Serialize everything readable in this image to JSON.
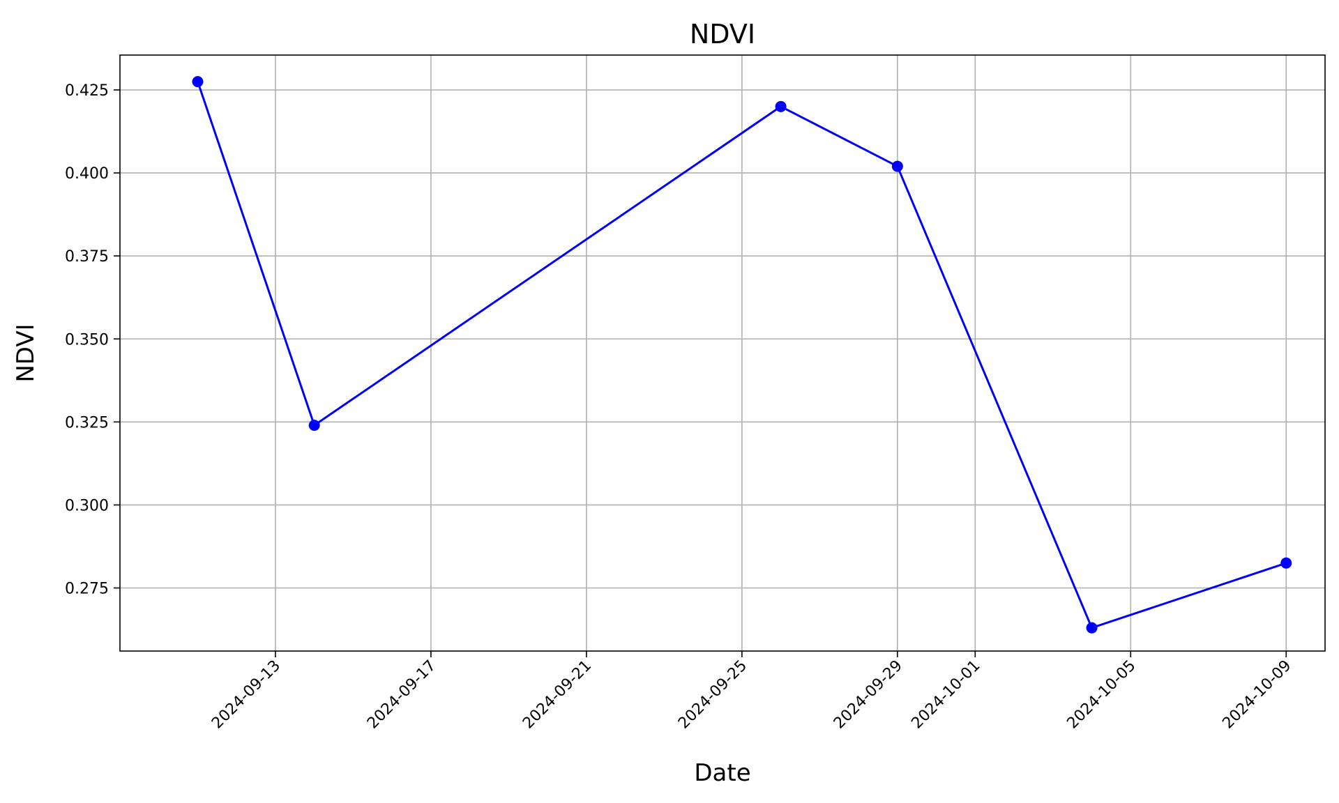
{
  "chart_data": {
    "type": "line",
    "title": "NDVI",
    "xlabel": "Date",
    "ylabel": "NDVI",
    "grid": true,
    "x_range": [
      "2024-09-09",
      "2024-10-10"
    ],
    "y_range": [
      0.256,
      0.4355
    ],
    "x_ticks": [
      "2024-09-13",
      "2024-09-17",
      "2024-09-21",
      "2024-09-25",
      "2024-09-29",
      "2024-10-01",
      "2024-10-05",
      "2024-10-09"
    ],
    "y_ticks": [
      "0.275",
      "0.300",
      "0.325",
      "0.350",
      "0.375",
      "0.400",
      "0.425"
    ],
    "series": [
      {
        "color": "#0000ff",
        "marker": "circle",
        "points": [
          {
            "x": "2024-09-11",
            "y": 0.4275
          },
          {
            "x": "2024-09-14",
            "y": 0.324
          },
          {
            "x": "2024-09-26",
            "y": 0.42
          },
          {
            "x": "2024-09-29",
            "y": 0.402
          },
          {
            "x": "2024-10-04",
            "y": 0.263
          },
          {
            "x": "2024-10-09",
            "y": 0.2825
          }
        ]
      }
    ]
  }
}
